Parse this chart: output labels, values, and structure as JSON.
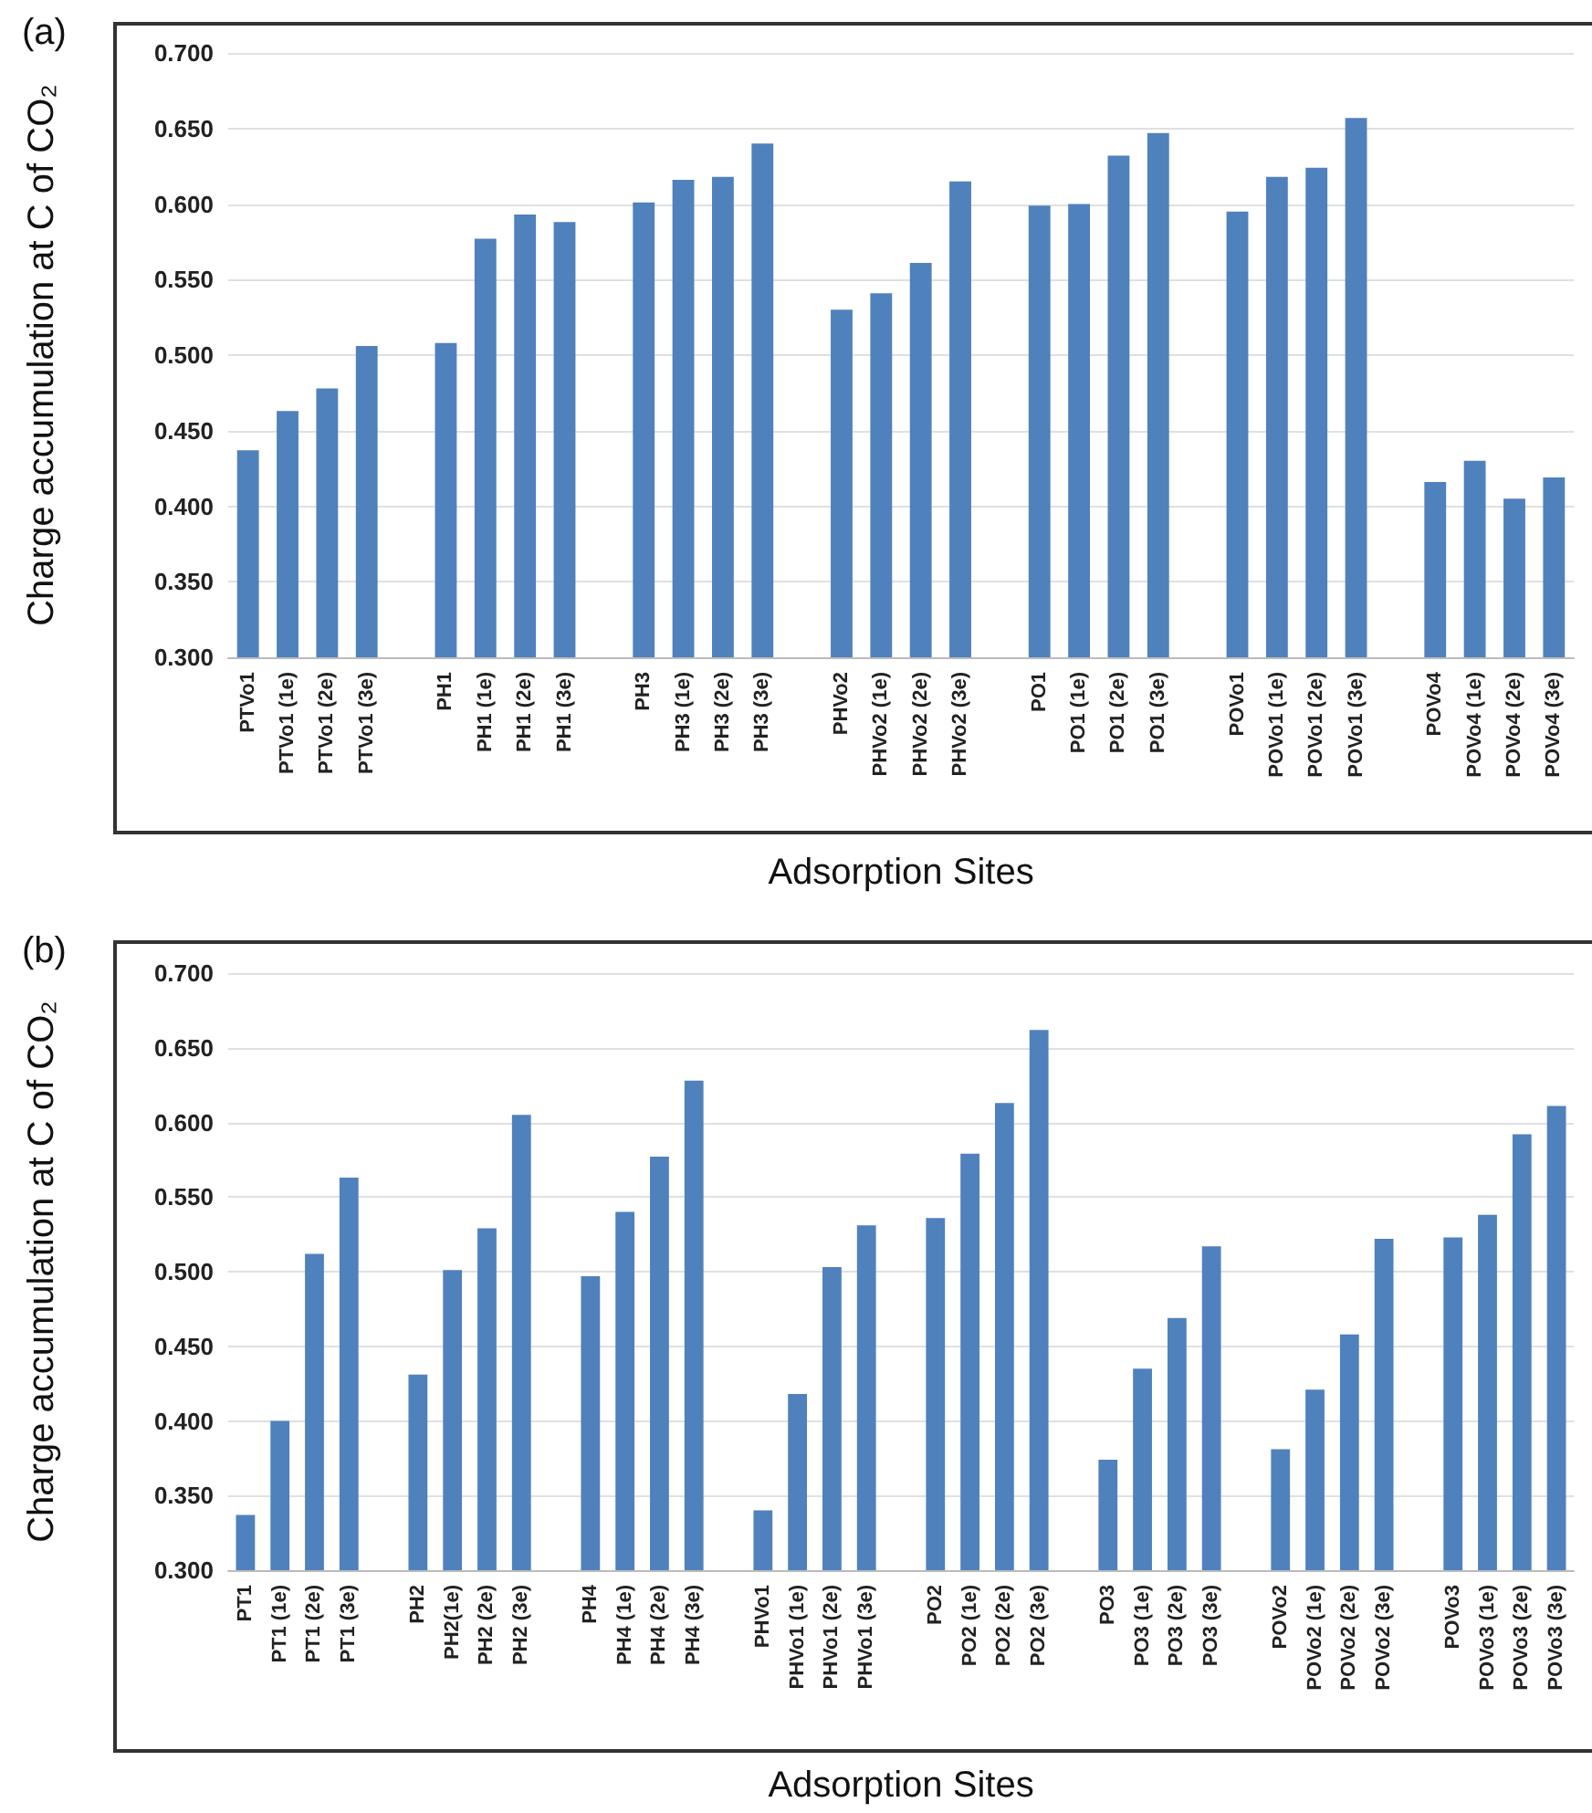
{
  "chart_data": [
    {
      "type": "bar",
      "annotations": [
        "(a)"
      ],
      "xlabel": "Adsorption Sites",
      "ylabel": "Charge accumulation at C of CO₂",
      "color": "#4f81bd",
      "grid": "y",
      "categories": [
        "PTVo1",
        "PTVo1 (1e)",
        "PTVo1 (2e)",
        "PTVo1 (3e)",
        null,
        "PH1",
        "PH1 (1e)",
        "PH1 (2e)",
        "PH1 (3e)",
        null,
        "PH3",
        "PH3 (1e)",
        "PH3 (2e)",
        "PH3 (3e)",
        null,
        "PHVo2",
        "PHVo2 (1e)",
        "PHVo2 (2e)",
        "PHVo2 (3e)",
        null,
        "PO1",
        "PO1 (1e)",
        "PO1 (2e)",
        "PO1 (3e)",
        null,
        "POVo1",
        "POVo1 (1e)",
        "POVo1 (2e)",
        "POVo1 (3e)",
        null,
        "POVo4",
        "POVo4 (1e)",
        "POVo4 (2e)",
        "POVo4 (3e)"
      ],
      "values": [
        0.437,
        0.463,
        0.478,
        0.506,
        null,
        0.508,
        0.577,
        0.593,
        0.588,
        null,
        0.601,
        0.616,
        0.618,
        0.64,
        null,
        0.53,
        0.541,
        0.561,
        0.615,
        null,
        0.599,
        0.6,
        0.632,
        0.647,
        null,
        0.595,
        0.618,
        0.624,
        0.657,
        null,
        0.416,
        0.43,
        0.405,
        0.419
      ],
      "ylim": [
        0.3,
        0.7
      ],
      "yticks": [
        {
          "value": 0.3,
          "label": "0.300"
        },
        {
          "value": 0.35,
          "label": "0.350"
        },
        {
          "value": 0.4,
          "label": "0.400"
        },
        {
          "value": 0.45,
          "label": "0.450"
        },
        {
          "value": 0.5,
          "label": "0.500"
        },
        {
          "value": 0.55,
          "label": "0.550"
        },
        {
          "value": 0.6,
          "label": "0.600"
        },
        {
          "value": 0.65,
          "label": "0.650"
        },
        {
          "value": 0.7,
          "label": "0.700"
        }
      ]
    },
    {
      "type": "bar",
      "annotations": [
        "(b)"
      ],
      "xlabel": "Adsorption Sites",
      "ylabel": "Charge accumulation at C of CO₂",
      "color": "#4f81bd",
      "grid": "y",
      "categories": [
        "PT1",
        "PT1 (1e)",
        "PT1 (2e)",
        "PT1 (3e)",
        null,
        "PH2",
        "PH2(1e)",
        "PH2 (2e)",
        "PH2 (3e)",
        null,
        "PH4",
        "PH4 (1e)",
        "PH4 (2e)",
        "PH4 (3e)",
        null,
        "PHVo1",
        "PHVo1 (1e)",
        "PHVo1 (2e)",
        "PHVo1 (3e)",
        null,
        "PO2",
        "PO2 (1e)",
        "PO2 (2e)",
        "PO2 (3e)",
        null,
        "PO3",
        "PO3 (1e)",
        "PO3 (2e)",
        "PO3 (3e)",
        null,
        "POVo2",
        "POVo2 (1e)",
        "POVo2 (2e)",
        "POVo2 (3e)",
        null,
        "POVo3",
        "POVo3 (1e)",
        "POVo3 (2e)",
        "POVo3 (3e)"
      ],
      "values": [
        0.337,
        0.4,
        0.512,
        0.563,
        null,
        0.431,
        0.501,
        0.529,
        0.605,
        null,
        0.497,
        0.54,
        0.577,
        0.628,
        null,
        0.34,
        0.418,
        0.503,
        0.531,
        null,
        0.536,
        0.579,
        0.613,
        0.662,
        null,
        0.374,
        0.435,
        0.469,
        0.517,
        null,
        0.381,
        0.421,
        0.458,
        0.522,
        null,
        0.523,
        0.538,
        0.592,
        0.611
      ],
      "ylim": [
        0.3,
        0.7
      ],
      "yticks": [
        {
          "value": 0.3,
          "label": "0.300"
        },
        {
          "value": 0.35,
          "label": "0.350"
        },
        {
          "value": 0.4,
          "label": "0.400"
        },
        {
          "value": 0.45,
          "label": "0.450"
        },
        {
          "value": 0.5,
          "label": "0.500"
        },
        {
          "value": 0.55,
          "label": "0.550"
        },
        {
          "value": 0.6,
          "label": "0.600"
        },
        {
          "value": 0.65,
          "label": "0.650"
        },
        {
          "value": 0.7,
          "label": "0.700"
        }
      ]
    }
  ]
}
